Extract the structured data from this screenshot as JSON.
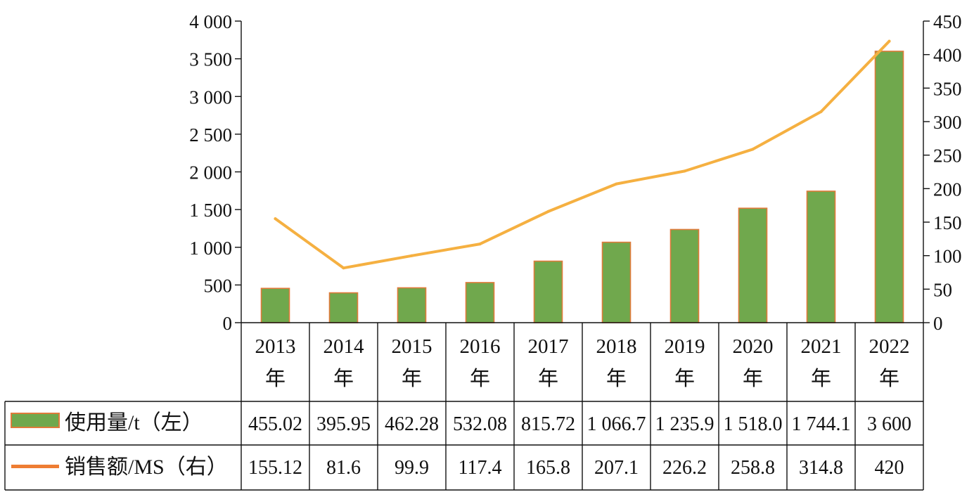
{
  "chart_data": {
    "type": "bar",
    "title": "",
    "xlabel": "",
    "categories": [
      "2013",
      "2014",
      "2015",
      "2016",
      "2017",
      "2018",
      "2019",
      "2020",
      "2021",
      "2022"
    ],
    "category_suffix": "年",
    "left_axis": {
      "ylim": [
        0,
        4000
      ],
      "ticks": [
        "0",
        "500",
        "1 000",
        "1 500",
        "2 000",
        "2 500",
        "3 000",
        "3 500",
        "4 000"
      ]
    },
    "right_axis": {
      "ylim": [
        0,
        450
      ],
      "ticks": [
        "0",
        "50",
        "100",
        "150",
        "200",
        "250",
        "300",
        "350",
        "400",
        "450"
      ]
    },
    "grid": false,
    "legend_placement": "data table below chart",
    "series": [
      {
        "name": "使用量/t（左）",
        "type": "bar",
        "axis": "left",
        "color": "#70a84d",
        "border_color": "#e07a3a",
        "values": [
          455.02,
          395.95,
          462.28,
          532.08,
          815.72,
          1066.7,
          1235.9,
          1518.0,
          1744.1,
          3600
        ],
        "labels": [
          "455.02",
          "395.95",
          "462.28",
          "532.08",
          "815.72",
          "1 066.7",
          "1 235.9",
          "1 518.0",
          "1 744.1",
          "3 600"
        ]
      },
      {
        "name": "销售额/MS（右）",
        "type": "line",
        "axis": "right",
        "color": "#f5b041",
        "legend_color": "#ee7d33",
        "values": [
          155.12,
          81.6,
          99.9,
          117.4,
          165.8,
          207.1,
          226.2,
          258.8,
          314.8,
          420
        ],
        "labels": [
          "155.12",
          "81.6",
          "99.9",
          "117.4",
          "165.8",
          "207.1",
          "226.2",
          "258.8",
          "314.8",
          "420"
        ]
      }
    ]
  }
}
